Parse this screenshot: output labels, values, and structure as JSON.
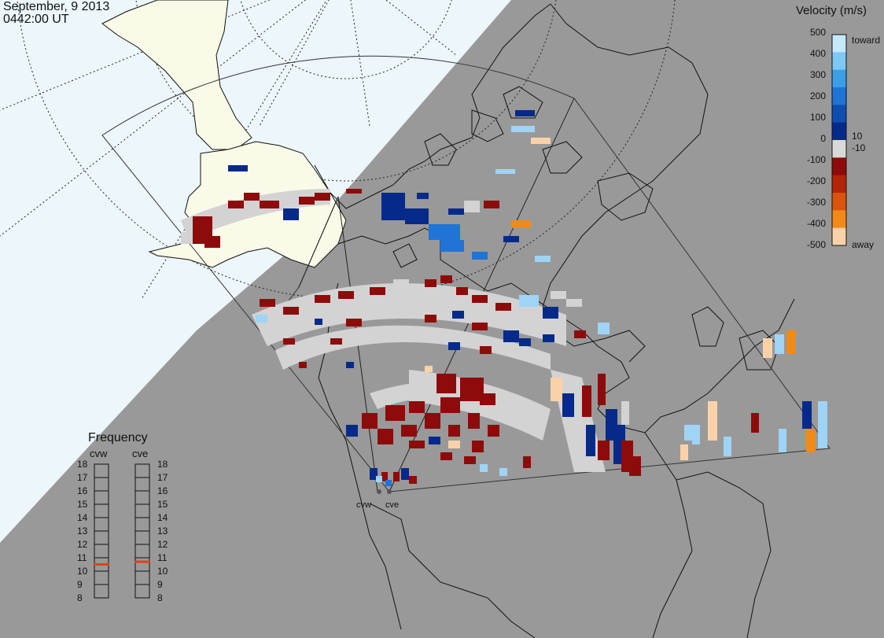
{
  "header": {
    "date": "September, 9 2013",
    "time": "0442:00 UT"
  },
  "colors": {
    "map_background": "#999999",
    "night_region": "#ecf6fb",
    "land_light": "#fafae8",
    "coastline": "#111111",
    "ground_scatter": "#d3d3d3",
    "frequency_marker": "#e2401a"
  },
  "velocity_legend": {
    "title": "Velocity (m/s)",
    "ticks": [
      "500",
      "400",
      "300",
      "200",
      "100",
      "0",
      "-100",
      "-200",
      "-300",
      "-400",
      "-500"
    ],
    "side_labels": {
      "toward": "toward",
      "ten": "10",
      "minus_ten": "-10",
      "away": "away"
    },
    "colors": [
      "#c6e8fb",
      "#7ec8f4",
      "#3a9fe6",
      "#1f74d6",
      "#0f4db1",
      "#062a8a",
      "#d9d9d9",
      "#8e0b0b",
      "#b32409",
      "#d9540c",
      "#f28a18",
      "#fbd2a8"
    ]
  },
  "frequency_legend": {
    "title": "Frequency",
    "radars": [
      {
        "name": "cvw",
        "value_mhz": 10.5
      },
      {
        "name": "cve",
        "value_mhz": 10.7
      }
    ],
    "ticks": [
      "18",
      "17",
      "16",
      "15",
      "14",
      "13",
      "12",
      "11",
      "10",
      "9",
      "8"
    ],
    "min": 8,
    "max": 18
  },
  "radar_sites": {
    "cvw": "cvw",
    "cve": "cve"
  },
  "map": {
    "projection": "polar stereographic",
    "grid": "dotted lat/lon",
    "ground_scatter_color": "grey"
  }
}
